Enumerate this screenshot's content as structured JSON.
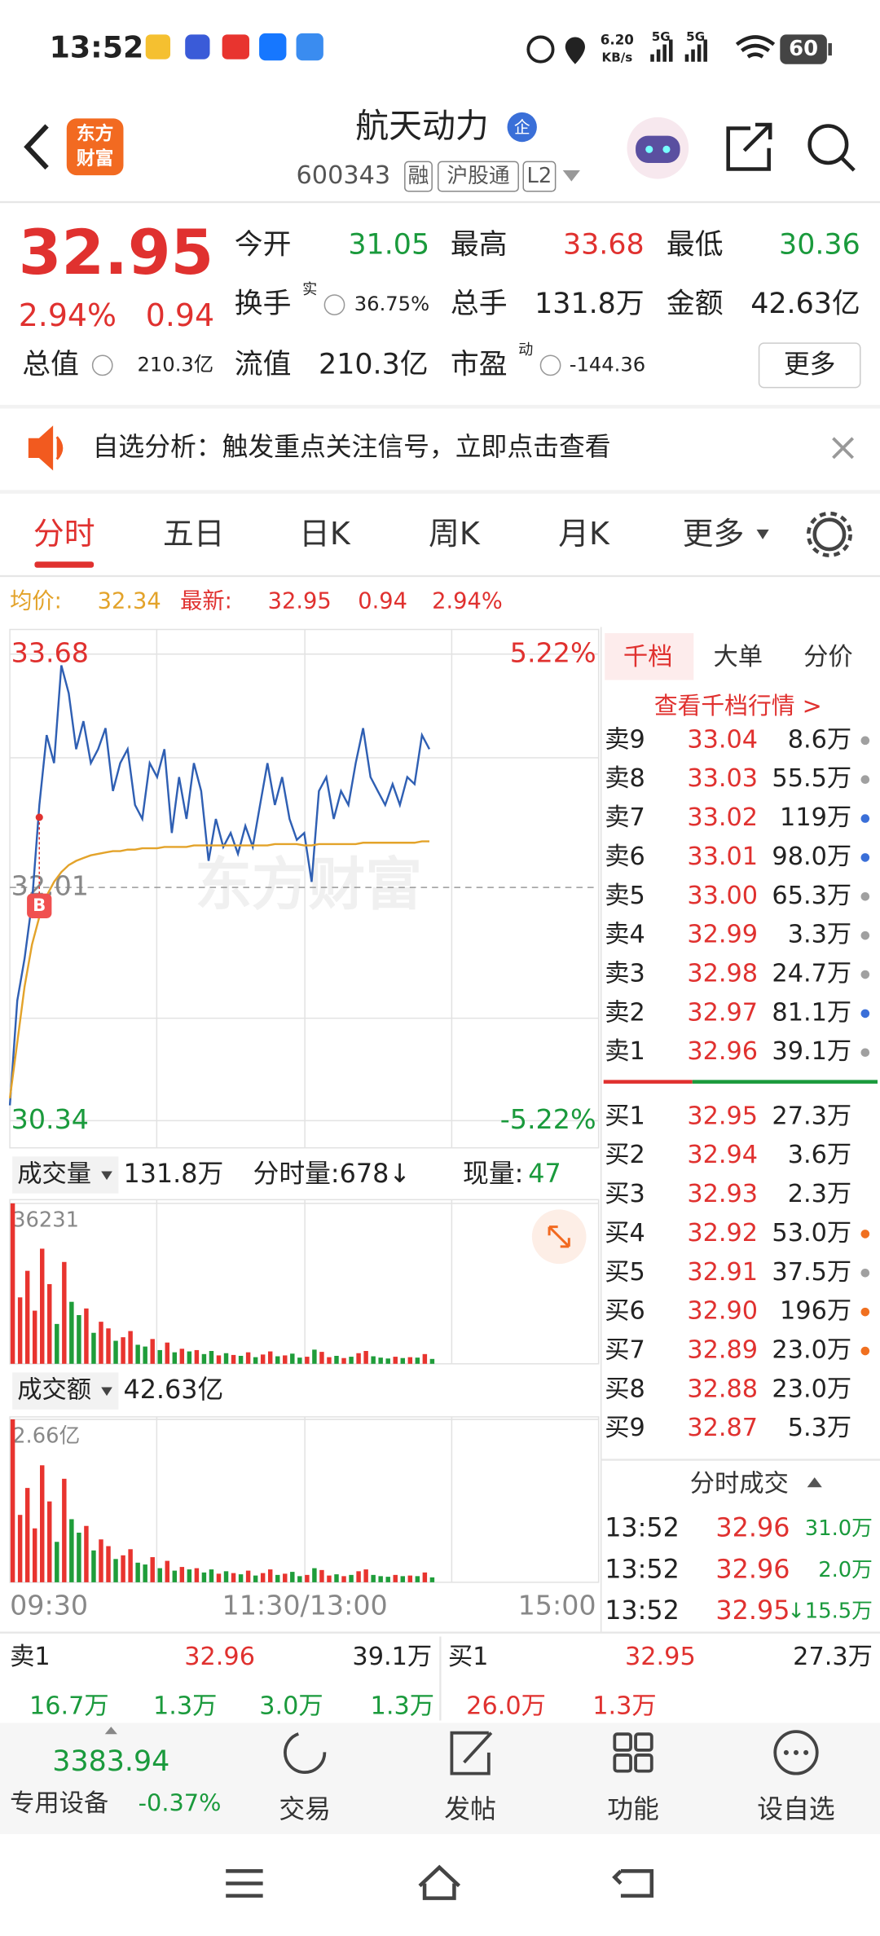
{
  "status_bar": {
    "time": "13:52",
    "speed": "6.20",
    "speed_unit": "KB/s",
    "network": [
      "5G",
      "5G"
    ],
    "battery": "60"
  },
  "header": {
    "logo": [
      "东方",
      "财富"
    ],
    "title": "航天动力",
    "badge": "企",
    "code": "600343",
    "tags": [
      "融",
      "沪股通",
      "L2"
    ]
  },
  "quote": {
    "price": "32.95",
    "change_pct": "2.94%",
    "change": "0.94",
    "fields": [
      {
        "label": "今开",
        "value": "31.05",
        "color": "#1a9a3c"
      },
      {
        "label": "最高",
        "value": "33.68",
        "color": "#e0312f"
      },
      {
        "label": "最低",
        "value": "30.36",
        "color": "#1a9a3c"
      },
      {
        "label": "换手",
        "sup": "实",
        "value": "36.75%",
        "color": "#222222"
      },
      {
        "label": "总手",
        "value": "131.8万",
        "color": "#222222"
      },
      {
        "label": "金额",
        "value": "42.63亿",
        "color": "#222222"
      },
      {
        "label": "总值",
        "value": "210.3亿",
        "color": "#222222"
      },
      {
        "label": "流值",
        "value": "210.3亿",
        "color": "#222222"
      },
      {
        "label": "市盈",
        "sup": "动",
        "value": "-144.36",
        "color": "#222222"
      }
    ],
    "more": "更多"
  },
  "banner": {
    "text": "自选分析：触发重点关注信号，立即点击查看"
  },
  "tabs": {
    "items": [
      "分时",
      "五日",
      "日K",
      "周K",
      "月K",
      "更多"
    ],
    "active": 0
  },
  "info_line": {
    "avg_label": "均价:",
    "avg": "32.34",
    "latest_label": "最新:",
    "latest": "32.95",
    "change": "0.94",
    "change_pct": "2.94%"
  },
  "watermark": "东方财富",
  "chart_data": [
    {
      "type": "line",
      "series": [
        {
          "color": "#2f5fb3",
          "values": [
            30.45,
            31.2,
            31.5,
            31.9,
            32.6,
            33.1,
            32.9,
            33.6,
            33.4,
            33.0,
            33.2,
            32.9,
            33.0,
            33.15,
            32.7,
            32.9,
            33.0,
            32.6,
            32.5,
            32.9,
            32.8,
            33.0,
            32.4,
            32.8,
            32.5,
            32.9,
            32.7,
            32.2,
            32.5,
            32.3,
            32.4,
            32.25,
            32.45,
            32.3,
            32.6,
            32.9,
            32.6,
            32.8,
            32.5,
            32.35,
            32.4,
            32.05,
            32.7,
            32.8,
            32.5,
            32.7,
            32.6,
            32.9,
            33.15,
            32.8,
            32.7,
            32.6,
            32.75,
            32.6,
            32.8,
            32.75,
            33.1,
            33.0
          ]
        },
        {
          "color": "#e3a32a",
          "values": [
            30.5,
            30.9,
            31.3,
            31.6,
            31.8,
            31.95,
            32.05,
            32.12,
            32.17,
            32.2,
            32.22,
            32.24,
            32.25,
            32.26,
            32.27,
            32.27,
            32.28,
            32.28,
            32.29,
            32.29,
            32.29,
            32.3,
            32.3,
            32.3,
            32.3,
            32.31,
            32.31,
            32.31,
            32.31,
            32.31,
            32.31,
            32.31,
            32.31,
            32.31,
            32.31,
            32.31,
            32.32,
            32.32,
            32.32,
            32.32,
            32.31,
            32.31,
            32.32,
            32.32,
            32.32,
            32.32,
            32.32,
            32.32,
            32.33,
            32.33,
            32.33,
            32.33,
            32.33,
            32.33,
            32.33,
            32.33,
            32.34,
            32.34
          ]
        }
      ],
      "ylim": [
        30.34,
        33.68
      ],
      "yticks": [
        30.34,
        32.01,
        33.68
      ],
      "y2lim": [
        -5.22,
        5.22
      ],
      "y2ticks": [
        {
          "value": -5.22,
          "label": "-5.22%"
        },
        {
          "value": 5.22,
          "label": "5.22%"
        }
      ],
      "marker": "B"
    },
    {
      "type": "bar",
      "values": [
        36231,
        15000,
        21000,
        12000,
        26000,
        18000,
        9000,
        23000,
        14000,
        11000,
        12500,
        7000,
        9500,
        8000,
        5200,
        6000,
        7400,
        4300,
        3900,
        5600,
        3100,
        4800,
        2600,
        3400,
        2800,
        3100,
        2200,
        2900,
        1900,
        2400,
        2000,
        1800,
        2600,
        1500,
        2100,
        2800,
        1700,
        1900,
        2300,
        1400,
        1600,
        3200,
        2700,
        1500,
        1800,
        1300,
        1600,
        2400,
        2900,
        1700,
        1400,
        1200,
        1600,
        1300,
        1500,
        1400,
        2200,
        1100
      ],
      "ylim": [
        0,
        36231
      ],
      "yticks": [
        36231
      ],
      "up_color": "#e8342f",
      "down_color": "#1f9d3a"
    },
    {
      "type": "bar",
      "values": [
        2.66,
        1.1,
        1.54,
        0.88,
        1.91,
        1.32,
        0.66,
        1.69,
        1.03,
        0.81,
        0.92,
        0.52,
        0.7,
        0.59,
        0.38,
        0.44,
        0.54,
        0.32,
        0.29,
        0.41,
        0.23,
        0.35,
        0.19,
        0.25,
        0.21,
        0.23,
        0.16,
        0.21,
        0.14,
        0.18,
        0.15,
        0.13,
        0.19,
        0.11,
        0.15,
        0.21,
        0.12,
        0.14,
        0.17,
        0.1,
        0.12,
        0.23,
        0.2,
        0.11,
        0.13,
        0.1,
        0.12,
        0.18,
        0.21,
        0.12,
        0.1,
        0.09,
        0.12,
        0.1,
        0.11,
        0.1,
        0.16,
        0.08
      ],
      "ylim": [
        0,
        2.66
      ],
      "yticks": [
        {
          "value": 2.66,
          "label": "2.66亿"
        }
      ],
      "up_color": "#e8342f",
      "down_color": "#1f9d3a",
      "xtick_labels": [
        "09:30",
        "11:30/13:00",
        "15:00"
      ]
    }
  ],
  "volume_header": {
    "label": "成交量",
    "total": "131.8万",
    "minute": "分时量:678↓",
    "now_label": "现量:",
    "now": "47"
  },
  "amount_header": {
    "label": "成交额",
    "total": "42.63亿"
  },
  "order_book": {
    "tabs": [
      "千档",
      "大单",
      "分价"
    ],
    "link": "查看千档行情 >",
    "asks": [
      {
        "label": "卖9",
        "price": "33.04",
        "volume": "8.6万",
        "dot": "#a0a0a0"
      },
      {
        "label": "卖8",
        "price": "33.03",
        "volume": "55.5万",
        "dot": "#a0a0a0"
      },
      {
        "label": "卖7",
        "price": "33.02",
        "volume": "119万",
        "dot": "#3a6fd8"
      },
      {
        "label": "卖6",
        "price": "33.01",
        "volume": "98.0万",
        "dot": "#3a6fd8"
      },
      {
        "label": "卖5",
        "price": "33.00",
        "volume": "65.3万",
        "dot": "#a0a0a0"
      },
      {
        "label": "卖4",
        "price": "32.99",
        "volume": "3.3万",
        "dot": "#a0a0a0"
      },
      {
        "label": "卖3",
        "price": "32.98",
        "volume": "24.7万",
        "dot": "#a0a0a0"
      },
      {
        "label": "卖2",
        "price": "32.97",
        "volume": "81.1万",
        "dot": "#3a6fd8"
      },
      {
        "label": "卖1",
        "price": "32.96",
        "volume": "39.1万",
        "dot": "#a0a0a0"
      }
    ],
    "bids": [
      {
        "label": "买1",
        "price": "32.95",
        "volume": "27.3万",
        "dot": null
      },
      {
        "label": "买2",
        "price": "32.94",
        "volume": "3.6万",
        "dot": null
      },
      {
        "label": "买3",
        "price": "32.93",
        "volume": "2.3万",
        "dot": null
      },
      {
        "label": "买4",
        "price": "32.92",
        "volume": "53.0万",
        "dot": "#f07020"
      },
      {
        "label": "买5",
        "price": "32.91",
        "volume": "37.5万",
        "dot": "#a0a0a0"
      },
      {
        "label": "买6",
        "price": "32.90",
        "volume": "196万",
        "dot": "#f07020"
      },
      {
        "label": "买7",
        "price": "32.89",
        "volume": "23.0万",
        "dot": "#f07020"
      },
      {
        "label": "买8",
        "price": "32.88",
        "volume": "23.0万",
        "dot": null
      },
      {
        "label": "买9",
        "price": "32.87",
        "volume": "5.3万",
        "dot": null
      }
    ]
  },
  "trades": {
    "title": "分时成交",
    "rows": [
      {
        "time": "13:52",
        "price": "32.96",
        "volume": "31.0万"
      },
      {
        "time": "13:52",
        "price": "32.96",
        "volume": "2.0万"
      },
      {
        "time": "13:52",
        "price": "32.95",
        "volume": "↓15.5万"
      }
    ]
  },
  "level1": {
    "ask_label": "卖1",
    "ask_price": "32.96",
    "ask_volume": "39.1万",
    "bid_label": "买1",
    "bid_price": "32.95",
    "bid_volume": "27.3万",
    "ask_queue": [
      "16.7万",
      "1.3万",
      "3.0万",
      "1.3万"
    ],
    "bid_queue": [
      "26.0万",
      "1.3万"
    ]
  },
  "bottom_nav": {
    "index_value": "3383.94",
    "sector": "专用设备",
    "index_change": "-0.37%",
    "items": [
      "交易",
      "发帖",
      "功能",
      "设自选"
    ]
  }
}
